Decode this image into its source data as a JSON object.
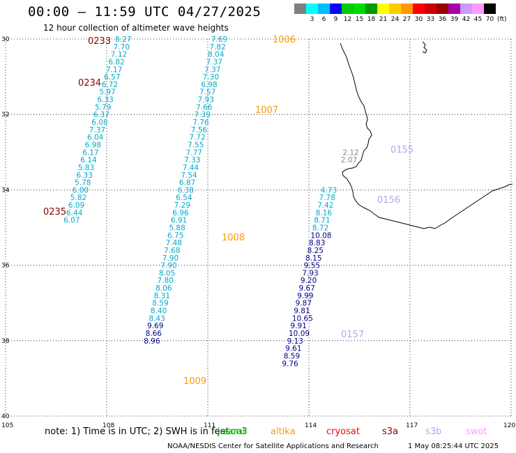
{
  "header": {
    "title": "00:00 – 11:59 UTC 04/27/2025",
    "subtitle": "12 hour collection of altimeter wave heights"
  },
  "colorbar": {
    "colors": [
      "#808080",
      "#00ffff",
      "#00bfff",
      "#0000ff",
      "#00cc00",
      "#00dd00",
      "#009900",
      "#ffff00",
      "#ffcc00",
      "#ff9900",
      "#ff0000",
      "#cc0000",
      "#990000",
      "#aa00aa",
      "#cc99ff",
      "#ff99ff",
      "#000000"
    ],
    "labels": [
      "",
      "3",
      "6",
      "9",
      "12",
      "15",
      "18",
      "21",
      "24",
      "27",
      "30",
      "33",
      "36",
      "39",
      "42",
      "45",
      "70"
    ],
    "unit": "(ft)"
  },
  "map": {
    "lat_labels": [
      "30",
      "32",
      "34",
      "36",
      "38",
      "40"
    ],
    "lon_labels": [
      "105",
      "108",
      "111",
      "114",
      "117",
      "120"
    ]
  },
  "tracks": [
    {
      "color": "#00aacc",
      "points": [
        [
          "8.27",
          108.25,
          30.0
        ],
        [
          "7.70",
          108.2,
          30.2
        ],
        [
          "7.12",
          108.12,
          30.4
        ],
        [
          "6.82",
          108.05,
          30.6
        ],
        [
          "7.17",
          107.98,
          30.8
        ],
        [
          "6.57",
          107.92,
          31.0
        ],
        [
          "6.72",
          107.85,
          31.2
        ],
        [
          "5.97",
          107.78,
          31.4
        ],
        [
          "6.33",
          107.72,
          31.6
        ],
        [
          "5.79",
          107.65,
          31.8
        ],
        [
          "6.37",
          107.6,
          32.0
        ],
        [
          "6.08",
          107.55,
          32.2
        ],
        [
          "7.37",
          107.48,
          32.4
        ],
        [
          "6.04",
          107.42,
          32.6
        ],
        [
          "6.98",
          107.35,
          32.8
        ],
        [
          "6.17",
          107.28,
          33.0
        ],
        [
          "6.14",
          107.22,
          33.2
        ],
        [
          "5.83",
          107.15,
          33.4
        ],
        [
          "6.33",
          107.1,
          33.6
        ],
        [
          "5.78",
          107.05,
          33.8
        ],
        [
          "6.00",
          106.98,
          34.0
        ],
        [
          "5.82",
          106.92,
          34.2
        ],
        [
          "6.09",
          106.86,
          34.4
        ],
        [
          "6.44",
          106.8,
          34.6
        ],
        [
          "6.07",
          106.72,
          34.8
        ]
      ]
    },
    {
      "color": "#00aacc",
      "points": [
        [
          "7.69",
          111.1,
          30.0
        ],
        [
          "7.82",
          111.05,
          30.2
        ],
        [
          "8.04",
          111.0,
          30.4
        ],
        [
          "7.37",
          110.95,
          30.6
        ],
        [
          "7.37",
          110.9,
          30.8
        ],
        [
          "7.30",
          110.85,
          31.0
        ],
        [
          "6.98",
          110.8,
          31.2
        ],
        [
          "7.57",
          110.75,
          31.4
        ],
        [
          "7.93",
          110.7,
          31.6
        ],
        [
          "7.66",
          110.65,
          31.8
        ],
        [
          "7.39",
          110.6,
          32.0
        ],
        [
          "7.76",
          110.55,
          32.2
        ],
        [
          "7.56",
          110.5,
          32.4
        ],
        [
          "7.72",
          110.45,
          32.6
        ],
        [
          "7.55",
          110.4,
          32.8
        ],
        [
          "7.77",
          110.35,
          33.0
        ],
        [
          "7.33",
          110.3,
          33.2
        ],
        [
          "7.44",
          110.25,
          33.4
        ],
        [
          "7.54",
          110.2,
          33.6
        ],
        [
          "6.87",
          110.15,
          33.8
        ],
        [
          "6.38",
          110.1,
          34.0
        ],
        [
          "6.54",
          110.05,
          34.2
        ],
        [
          "7.29",
          110.0,
          34.4
        ],
        [
          "6.96",
          109.95,
          34.6
        ],
        [
          "6.91",
          109.9,
          34.8
        ],
        [
          "5.88",
          109.85,
          35.0
        ],
        [
          "6.75",
          109.8,
          35.2
        ],
        [
          "7.48",
          109.75,
          35.4
        ],
        [
          "7.68",
          109.7,
          35.6
        ],
        [
          "7.90",
          109.65,
          35.8
        ],
        [
          "7.90",
          109.6,
          36.0
        ],
        [
          "8.05",
          109.55,
          36.2
        ],
        [
          "7.80",
          109.5,
          36.4
        ],
        [
          "8.06",
          109.45,
          36.6
        ],
        [
          "8.31",
          109.4,
          36.8
        ],
        [
          "8.59",
          109.35,
          37.0
        ],
        [
          "8.40",
          109.3,
          37.2
        ],
        [
          "8.43",
          109.25,
          37.4
        ]
      ]
    },
    {
      "color": "#00008b",
      "points": [
        [
          "9.69",
          109.2,
          37.6
        ],
        [
          "8.66",
          109.15,
          37.8
        ],
        [
          "8.96",
          109.1,
          38.0
        ]
      ]
    },
    {
      "color": "#00aacc",
      "points": [
        [
          "4.73",
          114.35,
          34.0
        ],
        [
          "7.78",
          114.3,
          34.2
        ],
        [
          "7.42",
          114.25,
          34.4
        ],
        [
          "8.16",
          114.2,
          34.6
        ],
        [
          "8.71",
          114.15,
          34.8
        ],
        [
          "8.72",
          114.1,
          35.0
        ]
      ]
    },
    {
      "color": "#00008b",
      "points": [
        [
          "10.08",
          114.05,
          35.2
        ],
        [
          "8.83",
          114.0,
          35.4
        ],
        [
          "8.25",
          113.95,
          35.6
        ],
        [
          "8.15",
          113.9,
          35.8
        ],
        [
          "9.55",
          113.85,
          36.0
        ],
        [
          "7.93",
          113.8,
          36.2
        ],
        [
          "9.20",
          113.75,
          36.4
        ],
        [
          "9.67",
          113.7,
          36.6
        ],
        [
          "9.99",
          113.65,
          36.8
        ],
        [
          "9.87",
          113.6,
          37.0
        ],
        [
          "9.81",
          113.55,
          37.2
        ],
        [
          "10.65",
          113.5,
          37.4
        ],
        [
          "9.91",
          113.45,
          37.6
        ],
        [
          "10.09",
          113.4,
          37.8
        ],
        [
          "9.13",
          113.35,
          38.0
        ],
        [
          "9.61",
          113.3,
          38.2
        ],
        [
          "8.59",
          113.25,
          38.4
        ],
        [
          "9.76",
          113.2,
          38.6
        ]
      ]
    },
    {
      "color": "#888888",
      "points": [
        [
          "2.12",
          115.0,
          33.0
        ],
        [
          "2.07",
          114.95,
          33.2
        ]
      ]
    }
  ],
  "track_ids": [
    {
      "text": "0233",
      "color": "#8b0000",
      "x": 0.0,
      "y": 0.0
    },
    {
      "text": "0234",
      "color": "#8b0000",
      "x": 0.0,
      "y": 0.0
    },
    {
      "text": "0235",
      "color": "#8b0000",
      "x": 0.0,
      "y": 0.0
    },
    {
      "text": "1006",
      "color": "#ff9900",
      "x": 0.0,
      "y": 0.0
    },
    {
      "text": "1007",
      "color": "#ff9900",
      "x": 0.0,
      "y": 0.0
    },
    {
      "text": "1008",
      "color": "#ff9900",
      "x": 0.0,
      "y": 0.0
    },
    {
      "text": "1009",
      "color": "#ff9900",
      "x": 0.0,
      "y": 0.0
    },
    {
      "text": "0155",
      "color": "#b0a8e8",
      "x": 0.0,
      "y": 0.0
    },
    {
      "text": "0156",
      "color": "#b0a8e8",
      "x": 0.0,
      "y": 0.0
    },
    {
      "text": "0157",
      "color": "#b0a8e8",
      "x": 0.0,
      "y": 0.0
    }
  ],
  "note": "note: 1) Time is in UTC; 2) SWH is in feet",
  "legend": [
    {
      "text": "jason3",
      "color": "#008000"
    },
    {
      "text": "saral",
      "color": "#00cc00"
    },
    {
      "text": "altika",
      "color": "#ff9900"
    },
    {
      "text": "cryosat",
      "color": "#ff0000"
    },
    {
      "text": "s3a",
      "color": "#8b0000"
    },
    {
      "text": "s3b",
      "color": "#b0a8e8"
    },
    {
      "text": "swot",
      "color": "#ff99ff"
    }
  ],
  "footer": {
    "left": "NOAA/NESDIS Center for Satellite Applications and Research",
    "right": "1 May 08:25:44 UTC 2025"
  }
}
